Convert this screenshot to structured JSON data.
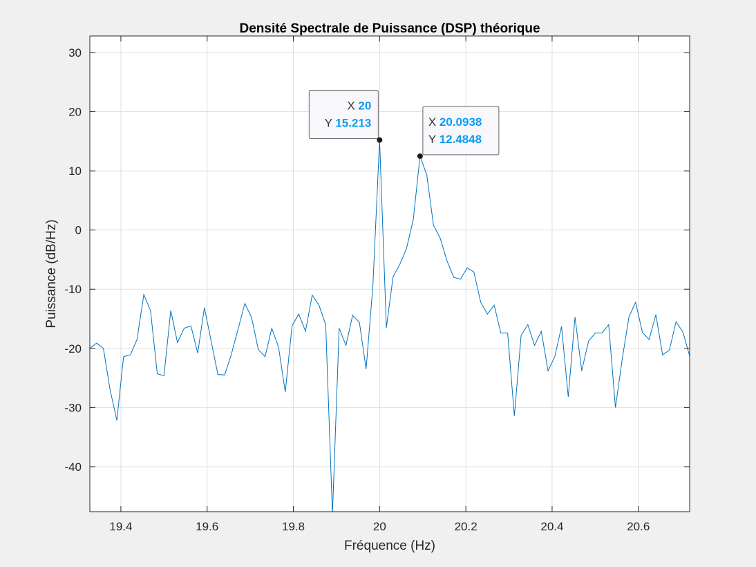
{
  "chart_data": {
    "type": "line",
    "title": "Densité Spectrale de Puissance (DSP) théorique",
    "xlabel": "Fréquence (Hz)",
    "ylabel": "Puissance (dB/Hz)",
    "xlim": [
      19.328,
      20.719
    ],
    "ylim": [
      -47.6,
      32.8
    ],
    "grid": true,
    "x_ticks": [
      19.4,
      19.6,
      19.8,
      20,
      20.2,
      20.4,
      20.6
    ],
    "x_tick_labels": [
      "19.4",
      "19.6",
      "19.8",
      "20",
      "20.2",
      "20.4",
      "20.6"
    ],
    "y_ticks": [
      -40,
      -30,
      -20,
      -10,
      0,
      10,
      20,
      30
    ],
    "y_tick_labels": [
      "-40",
      "-30",
      "-20",
      "-10",
      "0",
      "10",
      "20",
      "30"
    ],
    "series": [
      {
        "name": "DSP",
        "color": "#0072BD",
        "x_start": 19.328125,
        "x_step": 0.015625,
        "values": [
          -20.0,
          -19.1,
          -20.0,
          -27.0,
          -32.2,
          -21.4,
          -21.1,
          -18.5,
          -10.9,
          -13.6,
          -24.3,
          -24.6,
          -13.6,
          -19.0,
          -16.6,
          -16.2,
          -20.8,
          -13.1,
          -18.8,
          -24.4,
          -24.5,
          -21.0,
          -16.7,
          -12.4,
          -14.8,
          -20.2,
          -21.4,
          -16.6,
          -19.8,
          -27.4,
          -16.2,
          -14.2,
          -17.1,
          -11.0,
          -12.7,
          -16.0,
          -48.0,
          -16.6,
          -19.5,
          -14.4,
          -15.6,
          -23.5,
          -9.4,
          15.213,
          -16.5,
          -7.9,
          -5.8,
          -3.1,
          1.8,
          12.4848,
          9.3,
          0.8,
          -1.4,
          -5.2,
          -8.0,
          -8.3,
          -6.4,
          -7.1,
          -12.2,
          -14.2,
          -12.7,
          -17.4,
          -17.4,
          -31.4,
          -17.8,
          -16.0,
          -19.5,
          -17.1,
          -23.8,
          -21.4,
          -16.3,
          -28.2,
          -14.7,
          -23.8,
          -18.8,
          -17.4,
          -17.4,
          -16.0,
          -30.0,
          -21.9,
          -14.7,
          -12.2,
          -17.3,
          -18.5,
          -14.3,
          -21.1,
          -20.3,
          -15.5,
          -17.2,
          -21.2
        ]
      }
    ],
    "annotations": [
      {
        "type": "datatip",
        "x": 20,
        "y": 15.213,
        "x_text": "20",
        "y_text": "15.213",
        "x_key": "X",
        "y_key": "Y",
        "placement": "top-left"
      },
      {
        "type": "datatip",
        "x": 20.0938,
        "y": 12.4848,
        "x_text": "20.0938",
        "y_text": "12.4848",
        "x_key": "X",
        "y_key": "Y",
        "placement": "top-right"
      }
    ],
    "colors": {
      "axes_bg": "#ffffff",
      "figure_bg": "#f0f0f0",
      "grid": "#dfdfdf",
      "tip_value": "#0a9bf5"
    }
  }
}
